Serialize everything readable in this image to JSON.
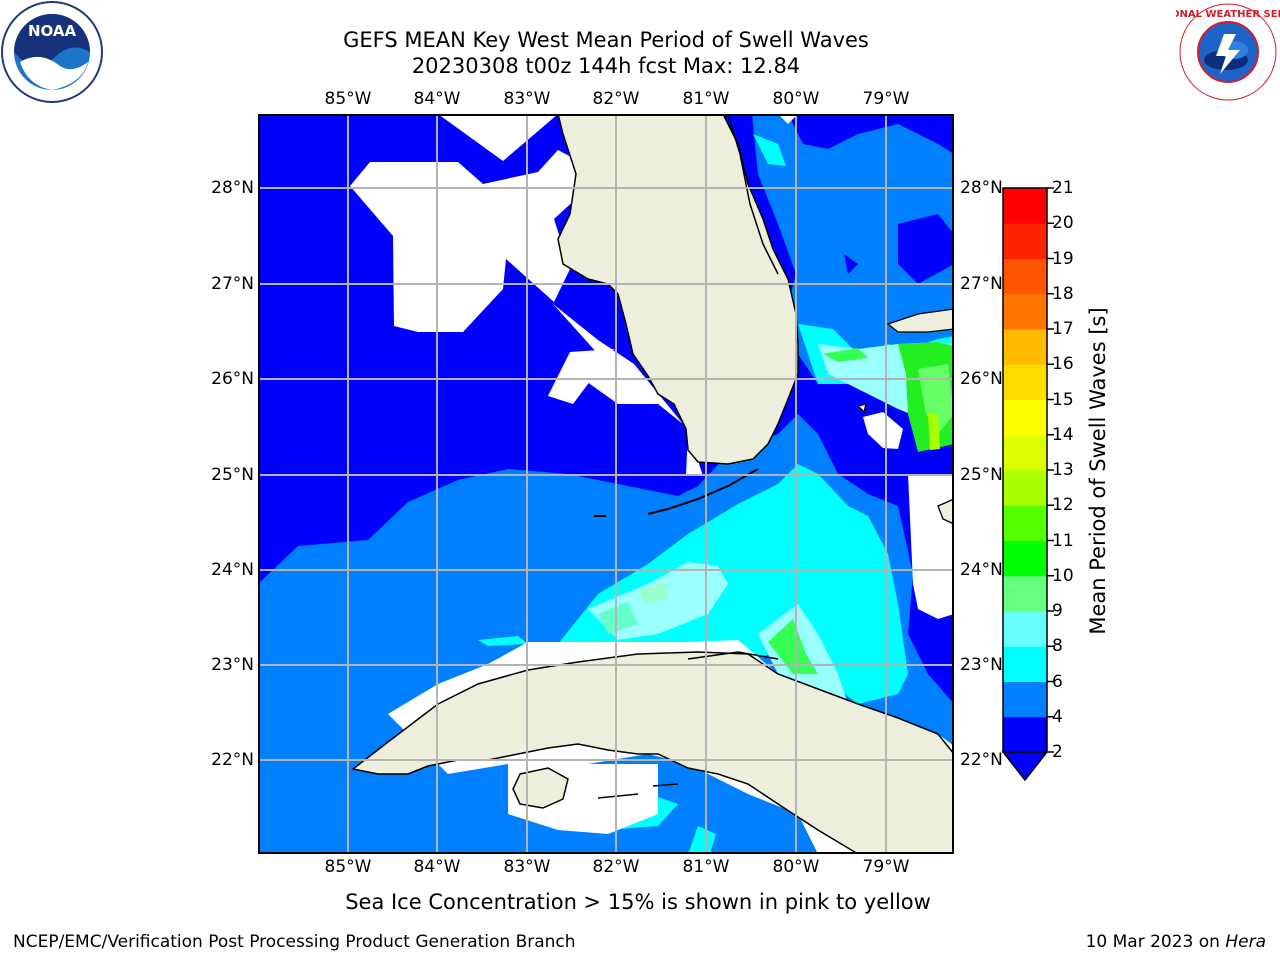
{
  "header": {
    "title_line1": "GEFS MEAN Key West Mean Period of Swell Waves",
    "title_line2": "20230308 t00z 144h fcst   Max: 12.84"
  },
  "logos": {
    "left": {
      "text": "NOAA",
      "icon": "noaa-logo"
    },
    "right": {
      "text": "NATIONAL WEATHER SERVICE",
      "icon": "nws-logo"
    }
  },
  "map": {
    "region": "Key West / South Florida / Cuba",
    "lon_labels": [
      "85°W",
      "84°W",
      "83°W",
      "82°W",
      "81°W",
      "80°W",
      "79°W"
    ],
    "lat_labels": [
      "28°N",
      "27°N",
      "26°N",
      "25°N",
      "24°N",
      "23°N",
      "22°N"
    ],
    "colors": {
      "land": "#EEEEDD",
      "no_data": "#FFFFFF",
      "grid": "#B4B4B4"
    }
  },
  "colorbar": {
    "label": "Mean Period of Swell Waves [s]",
    "ticks": [
      "2",
      "4",
      "6",
      "8",
      "9",
      "10",
      "11",
      "12",
      "13",
      "14",
      "15",
      "16",
      "17",
      "18",
      "19",
      "20",
      "21"
    ],
    "colors": [
      "#0000FF",
      "#0080FF",
      "#00FFFF",
      "#66FFFF",
      "#99FFCC",
      "#66FF80",
      "#00FF00",
      "#55FF00",
      "#AAFF00",
      "#DDFF00",
      "#FFFF00",
      "#FFDD00",
      "#FFBB00",
      "#FF9900",
      "#FF7700",
      "#FF5500",
      "#FF2200",
      "#FF0000"
    ],
    "under_color": "#0000FF"
  },
  "note": "Sea Ice Concentration > 15% is shown in pink to yellow",
  "footer": {
    "left": "NCEP/EMC/Verification Post Processing Product Generation Branch",
    "right_prefix": "10 Mar 2023 on ",
    "right_host": "Hera"
  }
}
